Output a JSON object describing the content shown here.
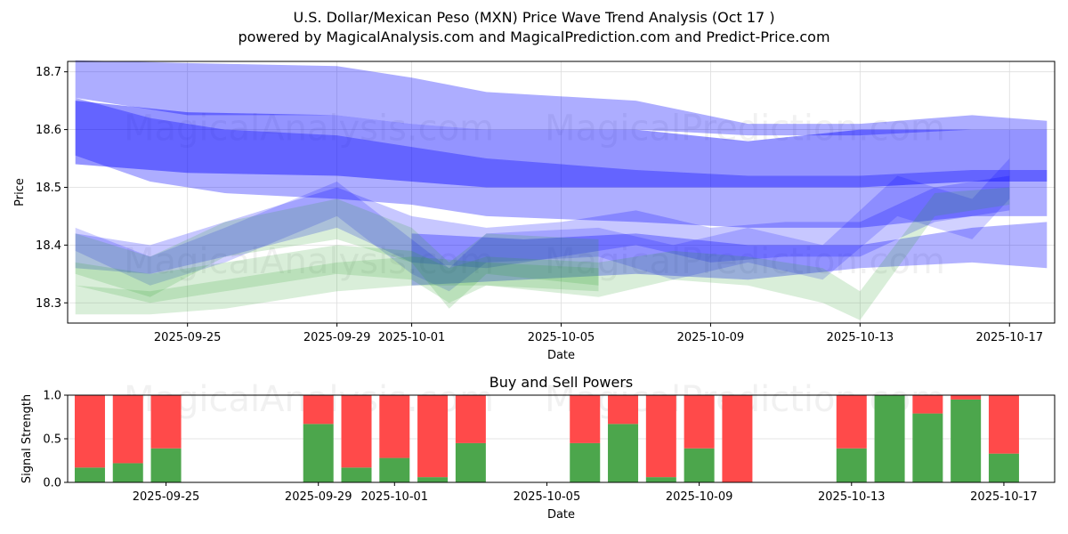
{
  "header": {
    "title": "U.S. Dollar/Mexican Peso (MXN) Price Wave Trend Analysis (Oct 17 )",
    "subtitle": "powered by MagicalAnalysis.com and MagicalPrediction.com and Predict-Price.com"
  },
  "watermarks": [
    "MagicalAnalysis.com",
    "MagicalPrediction.com"
  ],
  "colors": {
    "wave_blue": "#0000ff",
    "wave_green": "#2ca02c",
    "buy": "#4ca64c",
    "sell": "#ff4a4a"
  },
  "chart_data": [
    {
      "type": "area",
      "title": "",
      "xlabel": "Date",
      "ylabel": "Price",
      "x_range": [
        "2025-09-21T19:00",
        "2025-10-18T05:00"
      ],
      "ylim": [
        18.265,
        18.718
      ],
      "xticks": [
        "2025-09-25",
        "2025-09-29",
        "2025-10-01",
        "2025-10-05",
        "2025-10-09",
        "2025-10-13",
        "2025-10-17"
      ],
      "yticks": [
        "18.3",
        "18.4",
        "18.5",
        "18.6",
        "18.7"
      ],
      "grid": true,
      "series": [
        {
          "name": "blue-wave-1",
          "color": "blue",
          "alpha": 0.32,
          "x": [
            "2025-09-22",
            "2025-09-25",
            "2025-09-29",
            "2025-10-01",
            "2025-10-03",
            "2025-10-07",
            "2025-10-10",
            "2025-10-13",
            "2025-10-16",
            "2025-10-18"
          ],
          "upper": [
            18.72,
            18.715,
            18.71,
            18.69,
            18.665,
            18.65,
            18.61,
            18.61,
            18.625,
            18.615
          ],
          "lower": [
            18.655,
            18.625,
            18.625,
            18.61,
            18.6,
            18.6,
            18.59,
            18.59,
            18.6,
            18.6
          ]
        },
        {
          "name": "blue-wave-2",
          "color": "blue",
          "alpha": 0.42,
          "x": [
            "2025-09-22",
            "2025-09-25",
            "2025-09-29",
            "2025-10-01",
            "2025-10-03",
            "2025-10-07",
            "2025-10-10",
            "2025-10-13",
            "2025-10-16",
            "2025-10-18"
          ],
          "upper": [
            18.65,
            18.63,
            18.625,
            18.61,
            18.6,
            18.6,
            18.58,
            18.6,
            18.6,
            18.6
          ],
          "lower": [
            18.54,
            18.525,
            18.52,
            18.51,
            18.5,
            18.5,
            18.5,
            18.5,
            18.51,
            18.51
          ]
        },
        {
          "name": "blue-wave-3",
          "color": "blue",
          "alpha": 0.32,
          "x": [
            "2025-09-22",
            "2025-09-24",
            "2025-09-26",
            "2025-09-29",
            "2025-10-01",
            "2025-10-03",
            "2025-10-07",
            "2025-10-10",
            "2025-10-13",
            "2025-10-16",
            "2025-10-18"
          ],
          "upper": [
            18.655,
            18.62,
            18.6,
            18.59,
            18.57,
            18.55,
            18.53,
            18.52,
            18.52,
            18.53,
            18.53
          ],
          "lower": [
            18.555,
            18.51,
            18.49,
            18.48,
            18.47,
            18.45,
            18.44,
            18.43,
            18.43,
            18.45,
            18.45
          ]
        },
        {
          "name": "blue-wave-4",
          "color": "blue",
          "alpha": 0.22,
          "x": [
            "2025-09-22",
            "2025-09-24",
            "2025-09-26",
            "2025-09-29",
            "2025-10-01",
            "2025-10-03",
            "2025-10-05",
            "2025-10-07",
            "2025-10-09",
            "2025-10-11",
            "2025-10-13",
            "2025-10-15",
            "2025-10-17"
          ],
          "upper": [
            18.42,
            18.4,
            18.44,
            18.5,
            18.45,
            18.43,
            18.44,
            18.46,
            18.43,
            18.44,
            18.44,
            18.5,
            18.52
          ],
          "lower": [
            18.36,
            18.35,
            18.38,
            18.43,
            18.37,
            18.36,
            18.38,
            18.4,
            18.37,
            18.38,
            18.38,
            18.44,
            18.46
          ]
        },
        {
          "name": "blue-wave-5",
          "color": "blue",
          "alpha": 0.18,
          "x": [
            "2025-09-22",
            "2025-09-24",
            "2025-09-26",
            "2025-09-29",
            "2025-10-01",
            "2025-10-02",
            "2025-10-03",
            "2025-10-06",
            "2025-10-08",
            "2025-10-10",
            "2025-10-12",
            "2025-10-14",
            "2025-10-16",
            "2025-10-17"
          ],
          "upper": [
            18.43,
            18.38,
            18.43,
            18.51,
            18.41,
            18.36,
            18.42,
            18.43,
            18.4,
            18.43,
            18.4,
            18.52,
            18.48,
            18.55
          ],
          "lower": [
            18.39,
            18.33,
            18.37,
            18.45,
            18.35,
            18.32,
            18.37,
            18.38,
            18.34,
            18.37,
            18.34,
            18.45,
            18.41,
            18.48
          ]
        },
        {
          "name": "blue-wave-6",
          "color": "blue",
          "alpha": 0.3,
          "x": [
            "2025-10-01",
            "2025-10-04",
            "2025-10-07",
            "2025-10-10",
            "2025-10-13",
            "2025-10-16",
            "2025-10-18"
          ],
          "upper": [
            18.42,
            18.41,
            18.42,
            18.4,
            18.4,
            18.43,
            18.44
          ],
          "lower": [
            18.33,
            18.34,
            18.35,
            18.34,
            18.36,
            18.37,
            18.36
          ]
        },
        {
          "name": "green-wave-1",
          "color": "green",
          "alpha": 0.18,
          "x": [
            "2025-09-22",
            "2025-09-24",
            "2025-09-26",
            "2025-09-29",
            "2025-10-01",
            "2025-10-02",
            "2025-10-03",
            "2025-10-06",
            "2025-10-08",
            "2025-10-10",
            "2025-10-12",
            "2025-10-13",
            "2025-10-15",
            "2025-10-17"
          ],
          "upper": [
            18.37,
            18.35,
            18.37,
            18.4,
            18.39,
            18.36,
            18.38,
            18.37,
            18.39,
            18.38,
            18.36,
            18.32,
            18.49,
            18.5
          ],
          "lower": [
            18.33,
            18.3,
            18.32,
            18.35,
            18.34,
            18.3,
            18.33,
            18.31,
            18.34,
            18.33,
            18.3,
            18.27,
            18.45,
            18.47
          ]
        },
        {
          "name": "green-wave-2",
          "color": "green",
          "alpha": 0.18,
          "x": [
            "2025-09-22",
            "2025-09-24",
            "2025-09-26",
            "2025-09-29",
            "2025-10-01",
            "2025-10-03",
            "2025-10-06"
          ],
          "upper": [
            18.33,
            18.32,
            18.34,
            18.37,
            18.38,
            18.37,
            18.36
          ],
          "lower": [
            18.28,
            18.28,
            18.29,
            18.32,
            18.33,
            18.33,
            18.32
          ]
        },
        {
          "name": "green-wave-3",
          "color": "green",
          "alpha": 0.18,
          "x": [
            "2025-09-22",
            "2025-09-24",
            "2025-09-26",
            "2025-09-29",
            "2025-10-01",
            "2025-10-02",
            "2025-10-03",
            "2025-10-06"
          ],
          "upper": [
            18.42,
            18.38,
            18.44,
            18.48,
            18.43,
            18.37,
            18.42,
            18.41
          ],
          "lower": [
            18.35,
            18.31,
            18.38,
            18.41,
            18.37,
            18.29,
            18.35,
            18.33
          ]
        }
      ]
    },
    {
      "type": "bar",
      "title": "Buy and Sell Powers",
      "xlabel": "Date",
      "ylabel": "Signal Strength",
      "ylim": [
        0,
        1
      ],
      "yticks": [
        "0.0",
        "0.5",
        "1.0"
      ],
      "xticks": [
        "2025-09-25",
        "2025-09-29",
        "2025-10-01",
        "2025-10-05",
        "2025-10-09",
        "2025-10-13",
        "2025-10-17"
      ],
      "x_range": [
        "2025-09-22T10:00",
        "2025-10-18T08:00"
      ],
      "grid": true,
      "categories": [
        "2025-09-23",
        "2025-09-24",
        "2025-09-25",
        "2025-09-29",
        "2025-09-30",
        "2025-10-01",
        "2025-10-02",
        "2025-10-03",
        "2025-10-06",
        "2025-10-07",
        "2025-10-08",
        "2025-10-09",
        "2025-10-10",
        "2025-10-13",
        "2025-10-14",
        "2025-10-15",
        "2025-10-16",
        "2025-10-17"
      ],
      "series": [
        {
          "name": "Buy",
          "values": [
            0.17,
            0.22,
            0.39,
            0.67,
            0.17,
            0.28,
            0.06,
            0.45,
            0.45,
            0.67,
            0.06,
            0.39,
            0.0,
            0.39,
            1.0,
            0.79,
            0.95,
            0.33
          ]
        },
        {
          "name": "Sell",
          "values": [
            0.83,
            0.78,
            0.61,
            0.33,
            0.83,
            0.72,
            0.94,
            0.55,
            0.55,
            0.33,
            0.94,
            0.61,
            1.0,
            0.61,
            0.0,
            0.21,
            0.05,
            0.67
          ]
        }
      ]
    }
  ]
}
